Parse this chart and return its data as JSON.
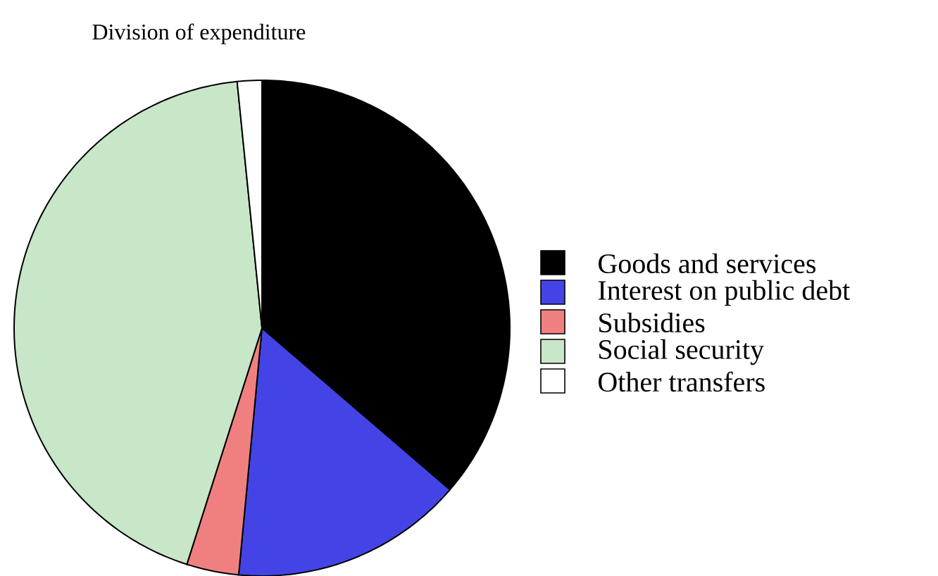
{
  "chart_data": {
    "type": "pie",
    "title": "Division of expenditure",
    "categories": [
      "Goods and services",
      "Interest on public debt",
      "Subsidies",
      "Social security",
      "Other transfers"
    ],
    "values": [
      36.3,
      15.2,
      3.4,
      43.5,
      1.6
    ],
    "colors": [
      "#000000",
      "#4444e6",
      "#f08080",
      "#c8e6c8",
      "#ffffff"
    ],
    "legend": "right"
  }
}
